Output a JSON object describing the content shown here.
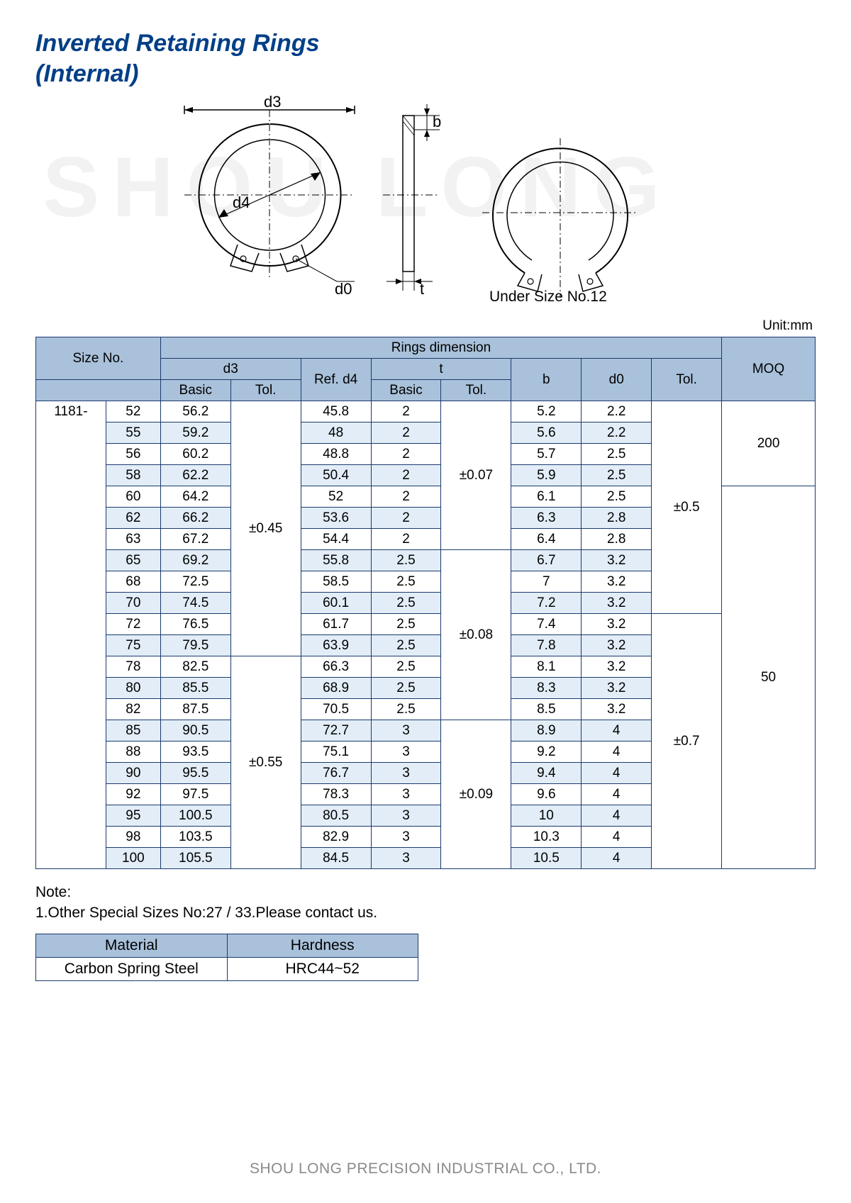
{
  "title_line1": "Inverted Retaining Rings",
  "title_line2": "(Internal)",
  "watermark": "SHOU LONG",
  "diagram": {
    "d3": "d3",
    "d4": "d4",
    "d0": "d0",
    "b": "b",
    "t": "t",
    "under_size": "Under Size No.12"
  },
  "unit": "Unit:mm",
  "headers": {
    "size_no": "Size No.",
    "rings_dim": "Rings dimension",
    "moq": "MOQ",
    "d3": "d3",
    "ref_d4": "Ref. d4",
    "t": "t",
    "b": "b",
    "d0": "d0",
    "tol": "Tol.",
    "basic": "Basic"
  },
  "prefix": "1181-",
  "tolerances": {
    "d3_a": "±0.45",
    "d3_b": "±0.55",
    "t_a": "±0.07",
    "t_b": "±0.08",
    "t_c": "±0.09",
    "d0_a": "±0.5",
    "d0_b": "±0.7"
  },
  "moq": {
    "a": "200",
    "b": "50"
  },
  "rows": [
    {
      "size": "52",
      "d3": "56.2",
      "d4": "45.8",
      "t": "2",
      "b": "5.2",
      "d0": "2.2"
    },
    {
      "size": "55",
      "d3": "59.2",
      "d4": "48",
      "t": "2",
      "b": "5.6",
      "d0": "2.2"
    },
    {
      "size": "56",
      "d3": "60.2",
      "d4": "48.8",
      "t": "2",
      "b": "5.7",
      "d0": "2.5"
    },
    {
      "size": "58",
      "d3": "62.2",
      "d4": "50.4",
      "t": "2",
      "b": "5.9",
      "d0": "2.5"
    },
    {
      "size": "60",
      "d3": "64.2",
      "d4": "52",
      "t": "2",
      "b": "6.1",
      "d0": "2.5"
    },
    {
      "size": "62",
      "d3": "66.2",
      "d4": "53.6",
      "t": "2",
      "b": "6.3",
      "d0": "2.8"
    },
    {
      "size": "63",
      "d3": "67.2",
      "d4": "54.4",
      "t": "2",
      "b": "6.4",
      "d0": "2.8"
    },
    {
      "size": "65",
      "d3": "69.2",
      "d4": "55.8",
      "t": "2.5",
      "b": "6.7",
      "d0": "3.2"
    },
    {
      "size": "68",
      "d3": "72.5",
      "d4": "58.5",
      "t": "2.5",
      "b": "7",
      "d0": "3.2"
    },
    {
      "size": "70",
      "d3": "74.5",
      "d4": "60.1",
      "t": "2.5",
      "b": "7.2",
      "d0": "3.2"
    },
    {
      "size": "72",
      "d3": "76.5",
      "d4": "61.7",
      "t": "2.5",
      "b": "7.4",
      "d0": "3.2"
    },
    {
      "size": "75",
      "d3": "79.5",
      "d4": "63.9",
      "t": "2.5",
      "b": "7.8",
      "d0": "3.2"
    },
    {
      "size": "78",
      "d3": "82.5",
      "d4": "66.3",
      "t": "2.5",
      "b": "8.1",
      "d0": "3.2"
    },
    {
      "size": "80",
      "d3": "85.5",
      "d4": "68.9",
      "t": "2.5",
      "b": "8.3",
      "d0": "3.2"
    },
    {
      "size": "82",
      "d3": "87.5",
      "d4": "70.5",
      "t": "2.5",
      "b": "8.5",
      "d0": "3.2"
    },
    {
      "size": "85",
      "d3": "90.5",
      "d4": "72.7",
      "t": "3",
      "b": "8.9",
      "d0": "4"
    },
    {
      "size": "88",
      "d3": "93.5",
      "d4": "75.1",
      "t": "3",
      "b": "9.2",
      "d0": "4"
    },
    {
      "size": "90",
      "d3": "95.5",
      "d4": "76.7",
      "t": "3",
      "b": "9.4",
      "d0": "4"
    },
    {
      "size": "92",
      "d3": "97.5",
      "d4": "78.3",
      "t": "3",
      "b": "9.6",
      "d0": "4"
    },
    {
      "size": "95",
      "d3": "100.5",
      "d4": "80.5",
      "t": "3",
      "b": "10",
      "d0": "4"
    },
    {
      "size": "98",
      "d3": "103.5",
      "d4": "82.9",
      "t": "3",
      "b": "10.3",
      "d0": "4"
    },
    {
      "size": "100",
      "d3": "105.5",
      "d4": "84.5",
      "t": "3",
      "b": "10.5",
      "d0": "4"
    }
  ],
  "note_label": "Note:",
  "note_1": "1.Other Special Sizes No:27 / 33.Please contact us.",
  "material_table": {
    "col_material": "Material",
    "col_hardness": "Hardness",
    "material": "Carbon Spring Steel",
    "hardness": "HRC44~52"
  },
  "footer": "SHOU LONG PRECISION INDUSTRIAL CO., LTD.",
  "colors": {
    "title": "#003f87",
    "header_bg": "#a9c1da",
    "row_alt_bg": "#e2edf7",
    "border": "#1a3a6e",
    "footer": "#8a8a8a",
    "watermark": "#f2f2f2"
  }
}
